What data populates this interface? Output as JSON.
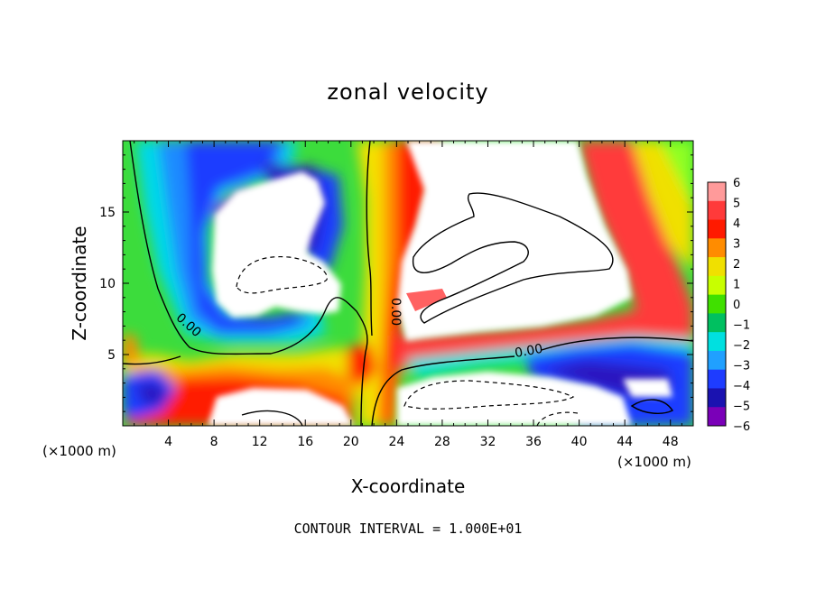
{
  "chart_data": {
    "type": "heatmap",
    "title": "zonal velocity",
    "xlabel": "X-coordinate",
    "ylabel": "Z-coordinate",
    "x_unit": "(×1000 m)",
    "x_ticks": [
      4,
      8,
      12,
      16,
      20,
      24,
      28,
      32,
      36,
      40,
      44,
      48
    ],
    "y_ticks": [
      5,
      10,
      15
    ],
    "xlim": [
      0,
      50
    ],
    "ylim": [
      0,
      20
    ],
    "colorbar": {
      "ticks": [
        6,
        5,
        4,
        3,
        2,
        1,
        0,
        -1,
        -2,
        -3,
        -4,
        -5,
        -6
      ],
      "colors": [
        "#ff9a9a",
        "#ff3a3a",
        "#ff1a00",
        "#ff8c00",
        "#f0e000",
        "#c8ff00",
        "#40e000",
        "#00c060",
        "#00e0e0",
        "#20a0ff",
        "#1e3cff",
        "#1a12b0",
        "#7a00b8"
      ]
    },
    "contour_labels": [
      "0.00",
      "0.00",
      "0.00"
    ],
    "footer": "CONTOUR INTERVAL = 1.000E+01"
  },
  "unit_left": "(×1000 m)",
  "unit_right": "(×1000 m)"
}
